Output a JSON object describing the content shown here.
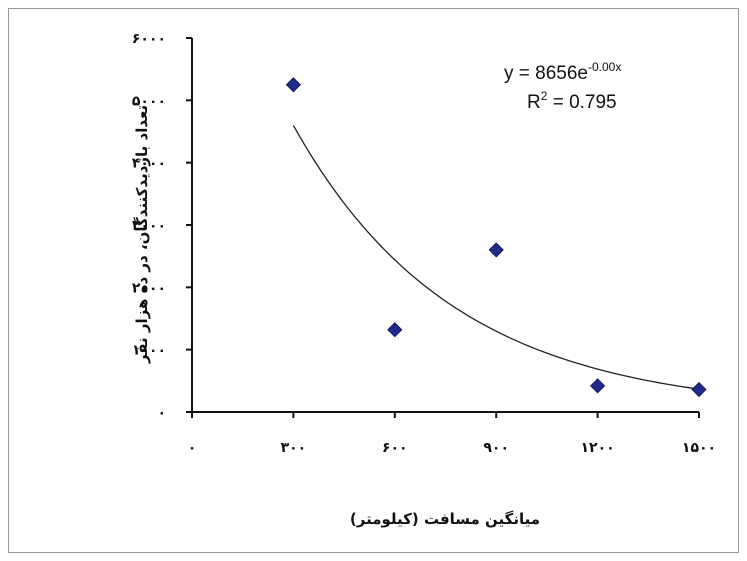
{
  "chart_data": {
    "type": "scatter",
    "title": "",
    "xlabel": "میانگین مسافت (کیلومتر)",
    "ylabel": "تعداد بازدیدکنندگان، در ده هزار نفر",
    "xlim": [
      0,
      1500
    ],
    "ylim": [
      0,
      6000
    ],
    "x_ticks": [
      0,
      300,
      600,
      900,
      1200,
      1500
    ],
    "x_tick_labels": [
      "۰",
      "۳۰۰",
      "۶۰۰",
      "۹۰۰",
      "۱۲۰۰",
      "۱۵۰۰"
    ],
    "y_ticks": [
      0,
      1000,
      2000,
      3000,
      4000,
      5000,
      6000
    ],
    "y_tick_labels": [
      "۰",
      "۱۰۰۰",
      "۲۰۰۰",
      "۳۰۰۰",
      "۴۰۰۰",
      "۵۰۰۰",
      "۶۰۰۰"
    ],
    "grid": false,
    "legend": "none",
    "marker_color": "#1f2a8a",
    "trendline_color": "#222222",
    "series": [
      {
        "x": [
          300,
          600,
          900,
          1200,
          1500
        ],
        "y": [
          5250,
          1320,
          2600,
          420,
          360
        ]
      }
    ],
    "trendline": {
      "type": "exponential",
      "a": 8656,
      "b": -0.00211,
      "x_range": [
        300,
        1500
      ]
    },
    "annotations": {
      "equation": "y = 8656e",
      "equation_exponent": "-0.00x",
      "r2_prefix": "R",
      "r2_sup": "2",
      "r2_value": " = 0.795"
    }
  }
}
